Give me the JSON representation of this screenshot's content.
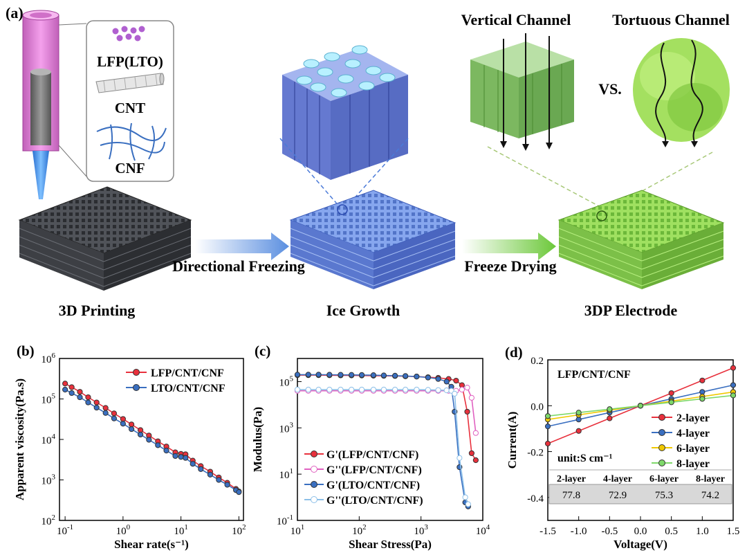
{
  "panel_a": {
    "label": "(a)",
    "legend_items": [
      "LFP(LTO)",
      "CNT",
      "CNF"
    ],
    "stages": [
      "3D Printing",
      "Ice Growth",
      "3DP Electrode"
    ],
    "arrows": [
      "Directional Freezing",
      "Freeze Drying"
    ],
    "channels": [
      "Vertical Channel",
      "Tortuous Channel"
    ],
    "versus": "VS.",
    "colors": {
      "printed": "#4a4d55",
      "ice": "#6f8fe0",
      "electrode": "#8ed64a",
      "nozzle": "#e07ad8"
    }
  },
  "chart_data": [
    {
      "panel": "(b)",
      "type": "line",
      "xlabel": "Shear rate(s⁻¹)",
      "ylabel": "Apparent viscosity(Pa.s)",
      "xscale": "log",
      "yscale": "log",
      "xlim": [
        0.08,
        120
      ],
      "ylim": [
        100,
        1000000
      ],
      "xticks": [
        {
          "v": 0.1,
          "b": "10",
          "e": "-1"
        },
        {
          "v": 1,
          "b": "10",
          "e": "0"
        },
        {
          "v": 10,
          "b": "10",
          "e": "1"
        },
        {
          "v": 100,
          "b": "10",
          "e": "2"
        }
      ],
      "yticks": [
        {
          "v": 100,
          "b": "10",
          "e": "2"
        },
        {
          "v": 1000,
          "b": "10",
          "e": "3"
        },
        {
          "v": 10000,
          "b": "10",
          "e": "4"
        },
        {
          "v": 100000,
          "b": "10",
          "e": "5"
        },
        {
          "v": 1000000,
          "b": "10",
          "e": "6"
        }
      ],
      "legend_position": "top-right",
      "series": [
        {
          "name": "LFP/CNT/CNF",
          "color": "#e8303c",
          "marker": "filled",
          "x": [
            0.1,
            0.13,
            0.18,
            0.25,
            0.35,
            0.5,
            0.7,
            1,
            1.4,
            2,
            2.8,
            4,
            5.6,
            8,
            10,
            12,
            16,
            22,
            32,
            45,
            63,
            89,
            100
          ],
          "y": [
            240000,
            195000,
            150000,
            110000,
            82000,
            60000,
            44000,
            32000,
            23500,
            17000,
            12500,
            9000,
            6700,
            4800,
            4400,
            4300,
            3000,
            2200,
            1600,
            1150,
            850,
            600,
            520
          ]
        },
        {
          "name": "LTO/CNT/CNF",
          "color": "#3a6fc0",
          "marker": "filled",
          "x": [
            0.1,
            0.13,
            0.18,
            0.25,
            0.35,
            0.5,
            0.7,
            1,
            1.4,
            2,
            2.8,
            4,
            5.6,
            8,
            10,
            12,
            16,
            22,
            32,
            45,
            63,
            89,
            100
          ],
          "y": [
            170000,
            140000,
            110000,
            82000,
            61000,
            45000,
            33000,
            24500,
            18000,
            13200,
            9800,
            7200,
            5300,
            3900,
            3700,
            3500,
            2500,
            1850,
            1350,
            1000,
            760,
            560,
            500
          ]
        }
      ]
    },
    {
      "panel": "(c)",
      "type": "line",
      "xlabel": "Shear Stress(Pa)",
      "ylabel": "Modulus(Pa)",
      "xscale": "log",
      "yscale": "log",
      "xlim": [
        10,
        10000
      ],
      "ylim": [
        0.1,
        1000000
      ],
      "xticks": [
        {
          "v": 10,
          "b": "10",
          "e": "1"
        },
        {
          "v": 100,
          "b": "10",
          "e": "2"
        },
        {
          "v": 1000,
          "b": "10",
          "e": "3"
        },
        {
          "v": 10000,
          "b": "10",
          "e": "4"
        }
      ],
      "yticks": [
        {
          "v": 0.1,
          "b": "10",
          "e": "-1"
        },
        {
          "v": 10,
          "b": "10",
          "e": "1"
        },
        {
          "v": 1000,
          "b": "10",
          "e": "3"
        },
        {
          "v": 100000,
          "b": "10",
          "e": "5"
        }
      ],
      "legend_position": "bottom-right",
      "series": [
        {
          "name": "G'(LFP/CNT/CNF)",
          "color": "#e8303c",
          "marker": "filled",
          "x": [
            10,
            15,
            22,
            33,
            50,
            75,
            110,
            170,
            250,
            380,
            560,
            850,
            1300,
            1900,
            2800,
            3700,
            4600,
            5600,
            6600,
            7700
          ],
          "y": [
            190000,
            190000,
            190000,
            188000,
            186000,
            185000,
            183000,
            180000,
            178000,
            175000,
            170000,
            165000,
            155000,
            145000,
            130000,
            110000,
            70000,
            5000,
            80,
            40
          ]
        },
        {
          "name": "G''(LFP/CNT/CNF)",
          "color": "#e060c0",
          "marker": "open",
          "x": [
            10,
            15,
            22,
            33,
            50,
            75,
            110,
            170,
            250,
            380,
            560,
            850,
            1300,
            1900,
            2800,
            3700,
            4600,
            5600,
            6600,
            7700
          ],
          "y": [
            40000,
            40000,
            40000,
            40000,
            40000,
            40000,
            40000,
            40000,
            40000,
            40000,
            40000,
            40000,
            40000,
            40000,
            40000,
            40000,
            45000,
            55000,
            20000,
            600
          ]
        },
        {
          "name": "G'(LTO/CNT/CNF)",
          "color": "#3a6fc0",
          "marker": "filled",
          "x": [
            10,
            15,
            22,
            33,
            50,
            75,
            110,
            170,
            250,
            380,
            560,
            850,
            1300,
            1900,
            2600,
            3100,
            3500,
            4200,
            5200,
            5800
          ],
          "y": [
            200000,
            200000,
            200000,
            198000,
            196000,
            195000,
            193000,
            190000,
            185000,
            180000,
            175000,
            165000,
            150000,
            130000,
            100000,
            60000,
            5000,
            20,
            0.6,
            0.4
          ]
        },
        {
          "name": "G''(LTO/CNT/CNF)",
          "color": "#8cbfe8",
          "marker": "open",
          "x": [
            10,
            15,
            22,
            33,
            50,
            75,
            110,
            170,
            250,
            380,
            560,
            850,
            1300,
            1900,
            2600,
            3100,
            3500,
            4200,
            5200,
            5800
          ],
          "y": [
            45000,
            45000,
            45000,
            45000,
            45000,
            45000,
            45000,
            45000,
            45000,
            45000,
            45000,
            45000,
            44000,
            43000,
            42000,
            40000,
            30000,
            50,
            1,
            0.5
          ]
        }
      ]
    },
    {
      "panel": "(d)",
      "type": "line",
      "annotation": "LFP/CNT/CNF",
      "xlabel": "Voltage(V)",
      "ylabel": "Current(A)",
      "xscale": "linear",
      "yscale": "linear",
      "xlim": [
        -1.5,
        1.5
      ],
      "ylim": [
        -0.5,
        0.2
      ],
      "xticks": [
        -1.5,
        -1.0,
        -0.5,
        0.0,
        0.5,
        1.0,
        1.5
      ],
      "xticklabels": [
        "-1.5",
        "-1.0",
        "-0.5",
        "0.0",
        "0.5",
        "1.0",
        "1.5"
      ],
      "yticks": [
        -0.4,
        -0.2,
        0.0,
        0.2
      ],
      "yticklabels": [
        "-0.4",
        "-0.2",
        "0.0",
        "0.2"
      ],
      "legend_position": "right",
      "series": [
        {
          "name": "2-layer",
          "color": "#e8303c",
          "marker": "filled",
          "x": [
            -1.5,
            -1.0,
            -0.5,
            0.0,
            0.5,
            1.0,
            1.5
          ],
          "y": [
            -0.165,
            -0.11,
            -0.055,
            0.0,
            0.055,
            0.11,
            0.165
          ]
        },
        {
          "name": "4-layer",
          "color": "#3a6fc0",
          "marker": "filled",
          "x": [
            -1.5,
            -1.0,
            -0.5,
            0.0,
            0.5,
            1.0,
            1.5
          ],
          "y": [
            -0.09,
            -0.06,
            -0.03,
            0.0,
            0.03,
            0.06,
            0.09
          ]
        },
        {
          "name": "6-layer",
          "color": "#f0c800",
          "marker": "filled",
          "x": [
            -1.5,
            -1.0,
            -0.5,
            0.0,
            0.5,
            1.0,
            1.5
          ],
          "y": [
            -0.06,
            -0.04,
            -0.02,
            0.0,
            0.02,
            0.04,
            0.06
          ]
        },
        {
          "name": "8-layer",
          "color": "#7ed86a",
          "marker": "filled",
          "x": [
            -1.5,
            -1.0,
            -0.5,
            0.0,
            0.5,
            1.0,
            1.5
          ],
          "y": [
            -0.045,
            -0.03,
            -0.015,
            0.0,
            0.015,
            0.03,
            0.045
          ]
        }
      ],
      "table": {
        "unit_label": "unit:S cm⁻¹",
        "headers": [
          "2-layer",
          "4-layer",
          "6-layer",
          "8-layer"
        ],
        "values": [
          "77.8",
          "72.9",
          "75.3",
          "74.2"
        ]
      }
    }
  ]
}
